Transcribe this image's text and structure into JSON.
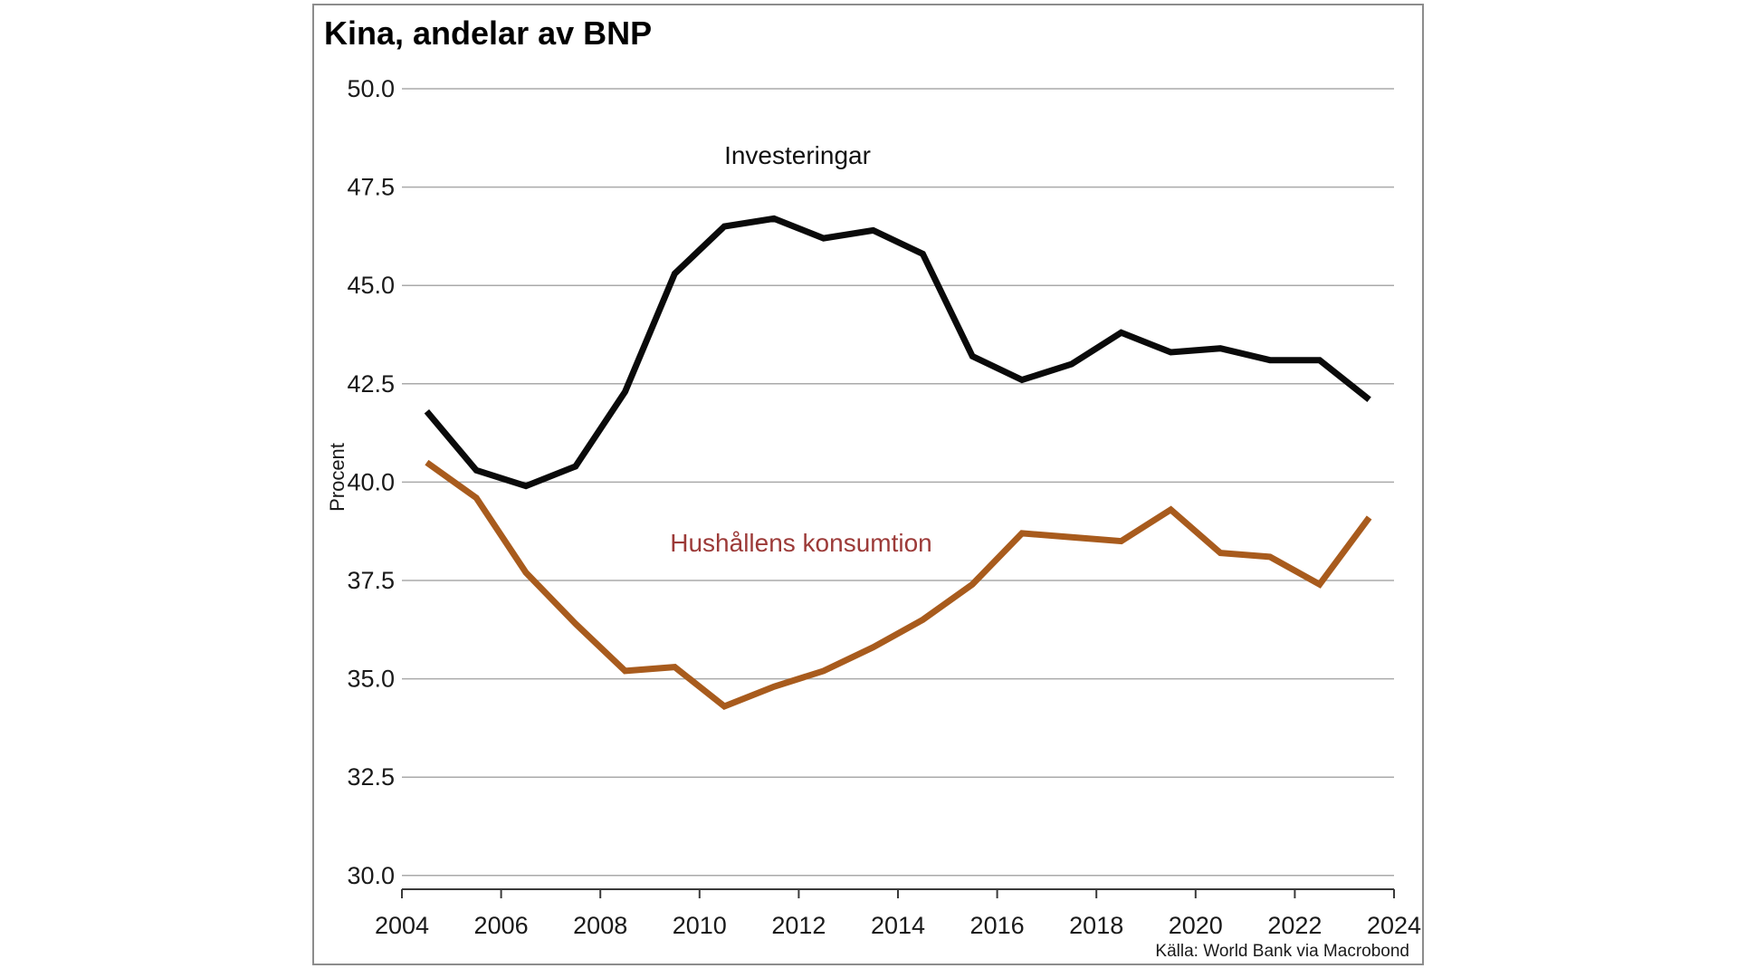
{
  "title": "Kina, andelar av BNP",
  "y_axis_title": "Procent",
  "source": "Källa: World Bank via Macrobond",
  "annotations": {
    "investments_label": "Investeringar",
    "consumption_label": "Hushållens konsumtion"
  },
  "colors": {
    "investments_line": "#0a0a0a",
    "consumption_line": "#a85b1d",
    "consumption_label_text": "#9c3a38",
    "gridline": "#aaaaaa",
    "axis": "#3a3a3a",
    "tick_label": "#1a1a1a",
    "panel_border": "#8c8c8c",
    "background": "#ffffff"
  },
  "chart_data": {
    "type": "line",
    "title": "Kina, andelar av BNP",
    "xlabel": "",
    "ylabel": "Procent",
    "x": [
      2004,
      2005,
      2006,
      2007,
      2008,
      2009,
      2010,
      2011,
      2012,
      2013,
      2014,
      2015,
      2016,
      2017,
      2018,
      2019,
      2020,
      2021,
      2022,
      2023
    ],
    "point_offset_years": 0.5,
    "series": [
      {
        "name": "Investeringar",
        "values": [
          41.8,
          40.3,
          39.9,
          40.4,
          42.3,
          45.3,
          46.5,
          46.7,
          46.2,
          46.4,
          45.8,
          43.2,
          42.6,
          43.0,
          43.8,
          43.3,
          43.4,
          43.1,
          43.1,
          42.1
        ]
      },
      {
        "name": "Hushållens konsumtion",
        "values": [
          40.5,
          39.6,
          37.7,
          36.4,
          35.2,
          35.3,
          34.3,
          34.8,
          35.2,
          35.8,
          36.5,
          37.4,
          38.7,
          38.6,
          38.5,
          39.3,
          38.2,
          38.1,
          37.4,
          39.1
        ]
      }
    ],
    "xlim": [
      2004,
      2024
    ],
    "ylim": [
      29.7,
      50.3
    ],
    "xticks": [
      2004,
      2006,
      2008,
      2010,
      2012,
      2014,
      2016,
      2018,
      2020,
      2022,
      2024
    ],
    "yticks": [
      30.0,
      32.5,
      35.0,
      37.5,
      40.0,
      42.5,
      45.0,
      47.5,
      50.0
    ],
    "grid": "horizontal",
    "legend_position": "inline-annotations",
    "unit": "percent"
  }
}
